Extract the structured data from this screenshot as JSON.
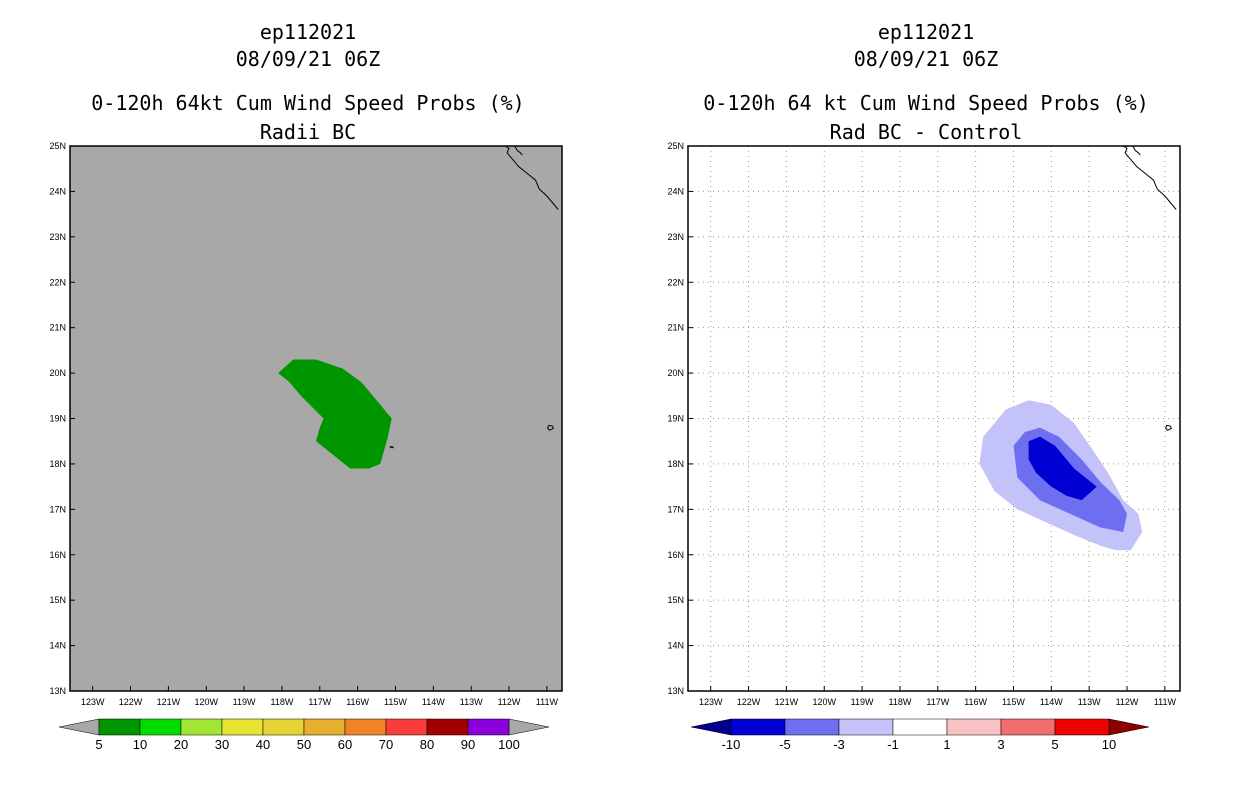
{
  "panels": [
    {
      "id": "left",
      "storm_id": "ep112021",
      "datetime": "08/09/21 06Z",
      "title": "0-120h 64kt Cum Wind Speed Probs (%)",
      "subtitle": "Radii BC",
      "background": "#a8a8a8"
    },
    {
      "id": "right",
      "storm_id": "ep112021",
      "datetime": "08/09/21 06Z",
      "title": "0-120h 64 kt Cum Wind Speed Probs (%)",
      "subtitle": "Rad BC - Control",
      "background": "#ffffff"
    }
  ],
  "chart_data": [
    {
      "type": "heatmap",
      "title": "0-120h 64kt Cum Wind Speed Probs (%)",
      "subtitle": "Radii BC",
      "x_axis": {
        "unit": "longitude",
        "range": [
          -123.6,
          -110.6
        ],
        "tick_values": [
          -123,
          -122,
          -121,
          -120,
          -119,
          -118,
          -117,
          -116,
          -115,
          -114,
          -113,
          -112,
          -111
        ],
        "tick_labels": [
          "123W",
          "122W",
          "121W",
          "120W",
          "119W",
          "118W",
          "117W",
          "116W",
          "115W",
          "114W",
          "113W",
          "112W",
          "111W"
        ]
      },
      "y_axis": {
        "unit": "latitude",
        "range": [
          13,
          25
        ],
        "tick_values": [
          13,
          14,
          15,
          16,
          17,
          18,
          19,
          20,
          21,
          22,
          23,
          24,
          25
        ],
        "tick_labels": [
          "13N",
          "14N",
          "15N",
          "16N",
          "17N",
          "18N",
          "19N",
          "20N",
          "21N",
          "22N",
          "23N",
          "24N",
          "25N"
        ]
      },
      "grid": false,
      "colorbar": {
        "levels": [
          "5",
          "10",
          "20",
          "30",
          "40",
          "50",
          "60",
          "70",
          "80",
          "90",
          "100"
        ],
        "colors": [
          "#009600",
          "#00dc00",
          "#a0e632",
          "#e6e632",
          "#e6d232",
          "#e6af2d",
          "#f08228",
          "#fa3c3c",
          "#a00000",
          "#8c00dc"
        ],
        "end_colors": [
          "#a8a8a8",
          "#a8a8a8"
        ]
      },
      "contours": [
        {
          "level": "5-10",
          "color": "#009600",
          "polygon": [
            [
              -118.1,
              20.0
            ],
            [
              -117.7,
              20.3
            ],
            [
              -117.1,
              20.3
            ],
            [
              -116.4,
              20.1
            ],
            [
              -115.9,
              19.8
            ],
            [
              -115.5,
              19.4
            ],
            [
              -115.1,
              19.0
            ],
            [
              -115.2,
              18.6
            ],
            [
              -115.4,
              18.0
            ],
            [
              -115.7,
              17.9
            ],
            [
              -116.0,
              17.9
            ],
            [
              -116.2,
              17.9
            ],
            [
              -116.5,
              18.1
            ],
            [
              -116.8,
              18.3
            ],
            [
              -117.1,
              18.5
            ],
            [
              -117.0,
              18.8
            ],
            [
              -116.9,
              19.0
            ],
            [
              -117.5,
              19.5
            ],
            [
              -117.8,
              19.8
            ]
          ]
        }
      ],
      "coastlines": true
    },
    {
      "type": "heatmap",
      "title": "0-120h 64 kt Cum Wind Speed Probs (%)",
      "subtitle": "Rad BC - Control",
      "x_axis": {
        "unit": "longitude",
        "range": [
          -123.6,
          -110.6
        ],
        "tick_values": [
          -123,
          -122,
          -121,
          -120,
          -119,
          -118,
          -117,
          -116,
          -115,
          -114,
          -113,
          -112,
          -111
        ],
        "tick_labels": [
          "123W",
          "122W",
          "121W",
          "120W",
          "119W",
          "118W",
          "117W",
          "116W",
          "115W",
          "114W",
          "113W",
          "112W",
          "111W"
        ]
      },
      "y_axis": {
        "unit": "latitude",
        "range": [
          13,
          25
        ],
        "tick_values": [
          13,
          14,
          15,
          16,
          17,
          18,
          19,
          20,
          21,
          22,
          23,
          24,
          25
        ],
        "tick_labels": [
          "13N",
          "14N",
          "15N",
          "16N",
          "17N",
          "18N",
          "19N",
          "20N",
          "21N",
          "22N",
          "23N",
          "24N",
          "25N"
        ]
      },
      "grid": true,
      "colorbar": {
        "levels": [
          "-10",
          "-5",
          "-3",
          "-1",
          "1",
          "3",
          "5",
          "10"
        ],
        "colors": [
          "#0000d2",
          "#6e6ef0",
          "#c3c3fa",
          "#ffffff",
          "#fac3c3",
          "#f06e6e",
          "#f00000"
        ],
        "end_colors": [
          "#00008c",
          "#8c0000"
        ]
      },
      "contours": [
        {
          "level": "-3 to -1",
          "color": "#c3c3fa",
          "polygon": [
            [
              -115.8,
              18.6
            ],
            [
              -115.2,
              19.2
            ],
            [
              -114.6,
              19.4
            ],
            [
              -114.0,
              19.3
            ],
            [
              -113.4,
              18.9
            ],
            [
              -112.9,
              18.3
            ],
            [
              -112.5,
              17.8
            ],
            [
              -112.1,
              17.2
            ],
            [
              -111.7,
              16.9
            ],
            [
              -111.6,
              16.5
            ],
            [
              -111.9,
              16.1
            ],
            [
              -112.3,
              16.1
            ],
            [
              -112.7,
              16.2
            ],
            [
              -113.3,
              16.4
            ],
            [
              -114.1,
              16.7
            ],
            [
              -114.9,
              17.0
            ],
            [
              -115.5,
              17.4
            ],
            [
              -115.9,
              18.0
            ]
          ]
        },
        {
          "level": "-5 to -3",
          "color": "#6e6ef0",
          "polygon": [
            [
              -115.0,
              18.4
            ],
            [
              -114.7,
              18.7
            ],
            [
              -114.3,
              18.8
            ],
            [
              -113.8,
              18.6
            ],
            [
              -113.2,
              18.1
            ],
            [
              -112.7,
              17.6
            ],
            [
              -112.2,
              17.2
            ],
            [
              -112.0,
              16.9
            ],
            [
              -112.1,
              16.5
            ],
            [
              -112.7,
              16.6
            ],
            [
              -113.5,
              16.9
            ],
            [
              -114.3,
              17.2
            ],
            [
              -114.9,
              17.7
            ]
          ]
        },
        {
          "level": "-10 to -5",
          "color": "#0000d2",
          "polygon": [
            [
              -114.6,
              18.5
            ],
            [
              -114.3,
              18.6
            ],
            [
              -113.9,
              18.4
            ],
            [
              -113.4,
              17.9
            ],
            [
              -112.8,
              17.5
            ],
            [
              -113.2,
              17.2
            ],
            [
              -113.6,
              17.3
            ],
            [
              -114.0,
              17.5
            ],
            [
              -114.4,
              17.8
            ],
            [
              -114.6,
              18.1
            ]
          ]
        }
      ],
      "coastlines": true
    }
  ]
}
